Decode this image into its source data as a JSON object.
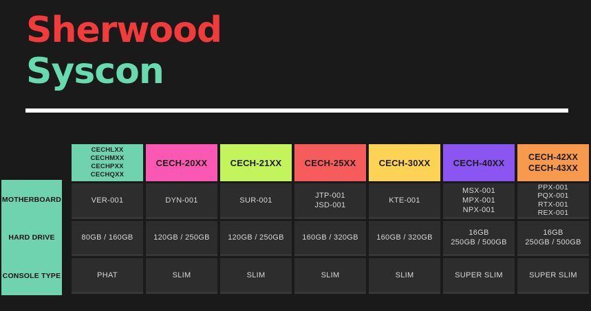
{
  "page": {
    "background": "#1A1A1A"
  },
  "title": {
    "line1": "Sherwood",
    "line2": "Syscon",
    "line1_color": "#F23B3B",
    "line2_color": "#67DBAF",
    "underline_color": "#FFFFFF"
  },
  "table": {
    "row_labels": [
      "MOTHERBOARD",
      "HARD DRIVE",
      "CONSOLE TYPE"
    ],
    "row_label_panel_color": "#6FD3AF",
    "cell_background": "#2D2D2D",
    "cell_text_color": "#D8D8D8",
    "header_text_color": "#1C1C1C",
    "columns": [
      {
        "id": "cechlxx-group",
        "header_lines": [
          "CECHLXX",
          "CECHMXX",
          "CECHPXX",
          "CECHQXX"
        ],
        "header_color": "#6FD3AF",
        "motherboard": [
          "VER-001"
        ],
        "hard_drive": [
          "80GB / 160GB"
        ],
        "console_type": [
          "PHAT"
        ]
      },
      {
        "id": "cech-20xx",
        "header_lines": [
          "CECH-20XX"
        ],
        "header_color": "#FA58B2",
        "motherboard": [
          "DYN-001"
        ],
        "hard_drive": [
          "120GB / 250GB"
        ],
        "console_type": [
          "SLIM"
        ]
      },
      {
        "id": "cech-21xx",
        "header_lines": [
          "CECH-21XX"
        ],
        "header_color": "#C3F45C",
        "motherboard": [
          "SUR-001"
        ],
        "hard_drive": [
          "120GB / 250GB"
        ],
        "console_type": [
          "SLIM"
        ]
      },
      {
        "id": "cech-25xx",
        "header_lines": [
          "CECH-25XX"
        ],
        "header_color": "#F65C5C",
        "motherboard": [
          "JTP-001",
          "JSD-001"
        ],
        "hard_drive": [
          "160GB / 320GB"
        ],
        "console_type": [
          "SLIM"
        ]
      },
      {
        "id": "cech-30xx",
        "header_lines": [
          "CECH-30XX"
        ],
        "header_color": "#FCD355",
        "motherboard": [
          "KTE-001"
        ],
        "hard_drive": [
          "160GB / 320GB"
        ],
        "console_type": [
          "SLIM"
        ]
      },
      {
        "id": "cech-40xx",
        "header_lines": [
          "CECH-40XX"
        ],
        "header_color": "#8A55F0",
        "motherboard": [
          "MSX-001",
          "MPX-001",
          "NPX-001"
        ],
        "hard_drive": [
          "16GB",
          "250GB / 500GB"
        ],
        "console_type": [
          "SUPER SLIM"
        ]
      },
      {
        "id": "cech-42xx-43xx",
        "header_lines": [
          "CECH-42XX",
          "CECH-43XX"
        ],
        "header_color": "#F79A4D",
        "motherboard": [
          "PPX-001",
          "PQX-001",
          "RTX-001",
          "REX-001"
        ],
        "hard_drive": [
          "16GB",
          "250GB / 500GB"
        ],
        "console_type": [
          "SUPER SLIM"
        ]
      }
    ]
  },
  "chart_data": {
    "type": "table",
    "title": "Sherwood Syscon",
    "row_headers": [
      "MOTHERBOARD",
      "HARD DRIVE",
      "CONSOLE TYPE"
    ],
    "column_headers": [
      "CECHLXX / CECHMXX / CECHPXX / CECHQXX",
      "CECH-20XX",
      "CECH-21XX",
      "CECH-25XX",
      "CECH-30XX",
      "CECH-40XX",
      "CECH-42XX / CECH-43XX"
    ],
    "rows": [
      [
        "VER-001",
        "DYN-001",
        "SUR-001",
        "JTP-001 / JSD-001",
        "KTE-001",
        "MSX-001 / MPX-001 / NPX-001",
        "PPX-001 / PQX-001 / RTX-001 / REX-001"
      ],
      [
        "80GB / 160GB",
        "120GB / 250GB",
        "120GB / 250GB",
        "160GB / 320GB",
        "160GB / 320GB",
        "16GB / 250GB / 500GB",
        "16GB / 250GB / 500GB"
      ],
      [
        "PHAT",
        "SLIM",
        "SLIM",
        "SLIM",
        "SLIM",
        "SUPER SLIM",
        "SUPER SLIM"
      ]
    ]
  }
}
